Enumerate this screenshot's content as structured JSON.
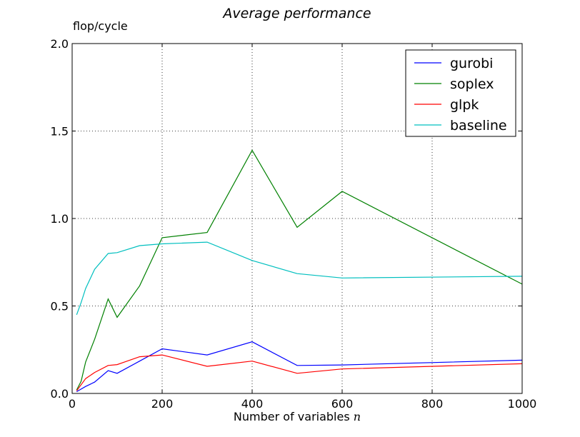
{
  "chart_data": {
    "type": "line",
    "title": "Average performance",
    "xlabel": "Number of variables",
    "xlabel_symbol": "n",
    "ylabel": "flop/cycle",
    "xlim": [
      0,
      1000
    ],
    "ylim": [
      0,
      2
    ],
    "xticks": [
      0,
      200,
      400,
      600,
      800,
      1000
    ],
    "xtick_labels": [
      "0",
      "200",
      "400",
      "600",
      "800",
      "1000"
    ],
    "yticks": [
      0,
      0.5,
      1,
      1.5,
      2
    ],
    "ytick_labels": [
      "0.0",
      "0.5",
      "1.0",
      "1.5",
      "2.0"
    ],
    "grid": true,
    "legend_position": "top-right",
    "series": [
      {
        "name": "gurobi",
        "color": "#0000ff",
        "x": [
          10,
          30,
          50,
          80,
          100,
          150,
          200,
          300,
          400,
          500,
          600,
          1000
        ],
        "y": [
          0.01,
          0.04,
          0.065,
          0.13,
          0.115,
          0.185,
          0.255,
          0.22,
          0.295,
          0.16,
          0.163,
          0.19
        ]
      },
      {
        "name": "soplex",
        "color": "#008000",
        "x": [
          10,
          20,
          30,
          50,
          80,
          100,
          150,
          200,
          300,
          400,
          500,
          600,
          1000
        ],
        "y": [
          0.02,
          0.07,
          0.18,
          0.31,
          0.54,
          0.435,
          0.615,
          0.89,
          0.92,
          1.39,
          0.95,
          1.155,
          0.625
        ]
      },
      {
        "name": "glpk",
        "color": "#ff0000",
        "x": [
          10,
          30,
          50,
          80,
          100,
          150,
          200,
          300,
          400,
          500,
          600,
          1000
        ],
        "y": [
          0.015,
          0.085,
          0.12,
          0.16,
          0.165,
          0.21,
          0.22,
          0.155,
          0.185,
          0.115,
          0.14,
          0.17
        ]
      },
      {
        "name": "baseline",
        "color": "#00bfbf",
        "x": [
          10,
          20,
          30,
          50,
          80,
          100,
          150,
          200,
          300,
          400,
          500,
          600,
          1000
        ],
        "y": [
          0.45,
          0.52,
          0.6,
          0.71,
          0.8,
          0.805,
          0.845,
          0.855,
          0.865,
          0.76,
          0.685,
          0.66,
          0.67
        ]
      }
    ]
  }
}
